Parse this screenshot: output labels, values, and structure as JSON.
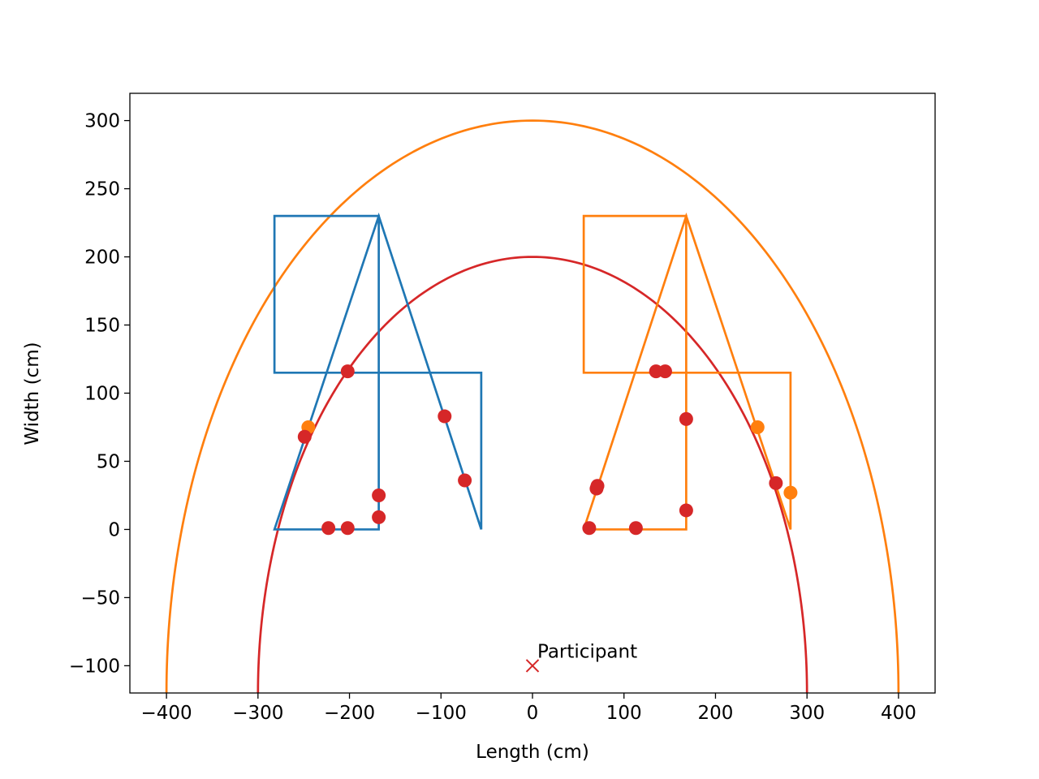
{
  "chart_data": {
    "type": "line",
    "xlabel": "Length (cm)",
    "ylabel": "Width (cm)",
    "xlim": [
      -440,
      440
    ],
    "ylim": [
      -120,
      320
    ],
    "xticks": [
      -400,
      -300,
      -200,
      -100,
      0,
      100,
      200,
      300,
      400
    ],
    "yticks": [
      -100,
      -50,
      0,
      50,
      100,
      150,
      200,
      250,
      300
    ],
    "xtick_labels": [
      "−400",
      "−300",
      "−200",
      "−100",
      "0",
      "100",
      "200",
      "300",
      "400"
    ],
    "ytick_labels": [
      "−100",
      "−50",
      "0",
      "50",
      "100",
      "150",
      "200",
      "250",
      "300"
    ],
    "grid": false,
    "arcs": [
      {
        "center": [
          0,
          -120
        ],
        "radius_x": 400,
        "radius_y": 420,
        "color": "#ff7f0e"
      },
      {
        "center": [
          0,
          -120
        ],
        "radius_x": 300,
        "radius_y": 320,
        "color": "#d62728"
      }
    ],
    "paths": [
      {
        "color": "#1f77b4",
        "points": [
          [
            -56,
            0
          ],
          [
            -56,
            115
          ],
          [
            -282,
            115
          ],
          [
            -282,
            230
          ],
          [
            -168,
            230
          ],
          [
            -168,
            0
          ],
          [
            -282,
            0
          ],
          [
            -168,
            230
          ],
          [
            -56,
            0
          ]
        ]
      },
      {
        "color": "#ff7f0e",
        "points": [
          [
            56,
            0
          ],
          [
            168,
            0
          ],
          [
            168,
            230
          ],
          [
            56,
            230
          ],
          [
            56,
            115
          ],
          [
            282,
            115
          ],
          [
            282,
            0
          ],
          [
            168,
            230
          ],
          [
            56,
            0
          ]
        ]
      }
    ],
    "points": [
      {
        "color": "#ff7f0e",
        "values": [
          [
            -245,
            75
          ],
          [
            246,
            75
          ],
          [
            282,
            27
          ]
        ]
      },
      {
        "color": "#d62728",
        "values": [
          [
            -249,
            68
          ],
          [
            -202,
            116
          ],
          [
            -223,
            1
          ],
          [
            -202,
            1
          ],
          [
            -168,
            25
          ],
          [
            -168,
            9
          ],
          [
            -96,
            83
          ],
          [
            -74,
            36
          ],
          [
            62,
            1
          ],
          [
            113,
            1
          ],
          [
            70,
            30
          ],
          [
            71,
            32
          ],
          [
            135,
            116
          ],
          [
            145,
            116
          ],
          [
            168,
            81
          ],
          [
            168,
            14
          ],
          [
            266,
            34
          ]
        ]
      }
    ],
    "annotation": {
      "text": "Participant",
      "x": 0,
      "y": -100,
      "marker": "x",
      "color": "#d62728"
    }
  }
}
